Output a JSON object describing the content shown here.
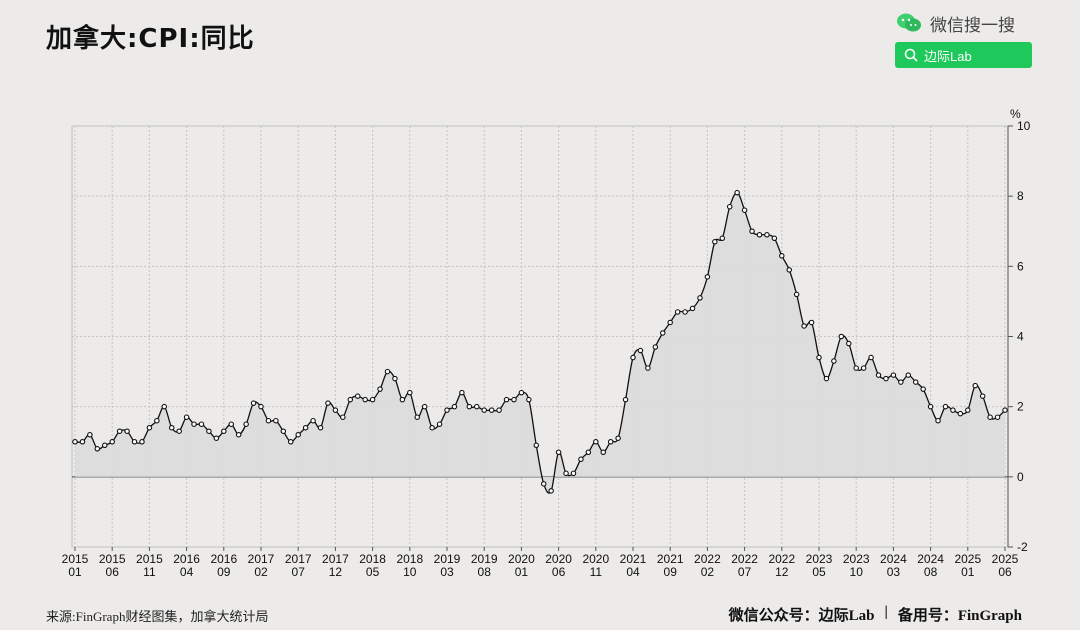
{
  "header": {
    "title": "加拿大:CPI:同比",
    "wechat_label": "微信搜一搜",
    "search_label": "边际Lab",
    "brand_color": "#1ec85a"
  },
  "footer": {
    "source": "来源:FinGraph财经图集，加拿大统计局",
    "wechat_account": "微信公众号：边际Lab",
    "separator": "|",
    "backup": "备用号：FinGraph"
  },
  "chart_data": {
    "type": "area",
    "ylabel": "%",
    "ylim": [
      -2,
      10
    ],
    "yticks": [
      -2,
      0,
      2,
      4,
      6,
      8,
      10
    ],
    "y_axis_side": "right",
    "grid": true,
    "line_color": "#111111",
    "fill_color": "#dcdcdc",
    "x_tick_labels": [
      [
        "2015",
        "01"
      ],
      [
        "2015",
        "06"
      ],
      [
        "2015",
        "11"
      ],
      [
        "2016",
        "04"
      ],
      [
        "2016",
        "09"
      ],
      [
        "2017",
        "02"
      ],
      [
        "2017",
        "07"
      ],
      [
        "2017",
        "12"
      ],
      [
        "2018",
        "05"
      ],
      [
        "2018",
        "10"
      ],
      [
        "2019",
        "03"
      ],
      [
        "2019",
        "08"
      ],
      [
        "2020",
        "01"
      ],
      [
        "2020",
        "06"
      ],
      [
        "2020",
        "11"
      ],
      [
        "2021",
        "04"
      ],
      [
        "2021",
        "09"
      ],
      [
        "2022",
        "02"
      ],
      [
        "2022",
        "07"
      ],
      [
        "2022",
        "12"
      ],
      [
        "2023",
        "05"
      ],
      [
        "2023",
        "10"
      ],
      [
        "2024",
        "03"
      ],
      [
        "2024",
        "08"
      ],
      [
        "2025",
        "01"
      ],
      [
        "2025",
        "06"
      ]
    ],
    "x_start": "2015-01",
    "x_end": "2025-06",
    "values": [
      1.0,
      1.0,
      1.2,
      0.8,
      0.9,
      1.0,
      1.3,
      1.3,
      1.0,
      1.0,
      1.4,
      1.6,
      2.0,
      1.4,
      1.3,
      1.7,
      1.5,
      1.5,
      1.3,
      1.1,
      1.3,
      1.5,
      1.2,
      1.5,
      2.1,
      2.0,
      1.6,
      1.6,
      1.3,
      1.0,
      1.2,
      1.4,
      1.6,
      1.4,
      2.1,
      1.9,
      1.7,
      2.2,
      2.3,
      2.2,
      2.2,
      2.5,
      3.0,
      2.8,
      2.2,
      2.4,
      1.7,
      2.0,
      1.4,
      1.5,
      1.9,
      2.0,
      2.4,
      2.0,
      2.0,
      1.9,
      1.9,
      1.9,
      2.2,
      2.2,
      2.4,
      2.2,
      0.9,
      -0.2,
      -0.4,
      0.7,
      0.1,
      0.1,
      0.5,
      0.7,
      1.0,
      0.7,
      1.0,
      1.1,
      2.2,
      3.4,
      3.6,
      3.1,
      3.7,
      4.1,
      4.4,
      4.7,
      4.7,
      4.8,
      5.1,
      5.7,
      6.7,
      6.8,
      7.7,
      8.1,
      7.6,
      7.0,
      6.9,
      6.9,
      6.8,
      6.3,
      5.9,
      5.2,
      4.3,
      4.4,
      3.4,
      2.8,
      3.3,
      4.0,
      3.8,
      3.1,
      3.1,
      3.4,
      2.9,
      2.8,
      2.9,
      2.7,
      2.9,
      2.7,
      2.5,
      2.0,
      1.6,
      2.0,
      1.9,
      1.8,
      1.9,
      2.6,
      2.3,
      1.7,
      1.7,
      1.9
    ]
  }
}
